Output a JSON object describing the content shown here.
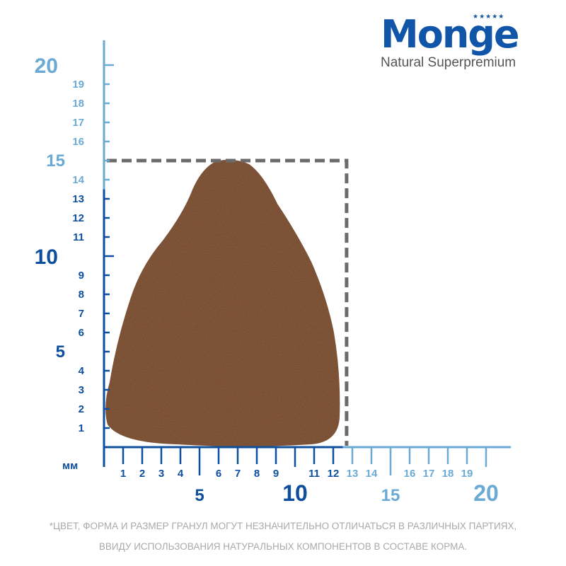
{
  "brand": {
    "name": "Monge",
    "tagline": "Natural Superpremium",
    "color": "#1155a8"
  },
  "ruler": {
    "unit": "мм",
    "dark_color": "#0d4f9c",
    "light_color": "#6aaad4",
    "dark_limit_x_mm": 12.5,
    "dark_limit_y_mm": 13.5,
    "x_minor_labels": [
      "1",
      "2",
      "3",
      "4",
      "6",
      "7",
      "8",
      "9",
      "11",
      "12",
      "13",
      "14",
      "16",
      "17",
      "18",
      "19"
    ],
    "x_major_labels": [
      "5",
      "10",
      "15",
      "20"
    ],
    "y_minor_labels": [
      "1",
      "2",
      "3",
      "4",
      "6",
      "7",
      "8",
      "9",
      "11",
      "12",
      "13",
      "14",
      "16",
      "17",
      "18",
      "19"
    ],
    "y_major_labels": [
      "5",
      "10",
      "15",
      "20"
    ],
    "dashed_box_mm": [
      12.7,
      15
    ]
  },
  "kibble": {
    "color": "#7a4e30"
  },
  "disclaimer": {
    "line1": "*ЦВЕТ, ФОРМА И РАЗМЕР ГРАНУЛ МОГУТ НЕЗНАЧИТЕЛЬНО ОТЛИЧАТЬСЯ В РАЗЛИЧНЫХ ПАРТИЯХ,",
    "line2": "ВВИДУ ИСПОЛЬЗОВАНИЯ НАТУРАЛЬНЫХ КОМПОНЕНТОВ В СОСТАВЕ КОРМА."
  }
}
